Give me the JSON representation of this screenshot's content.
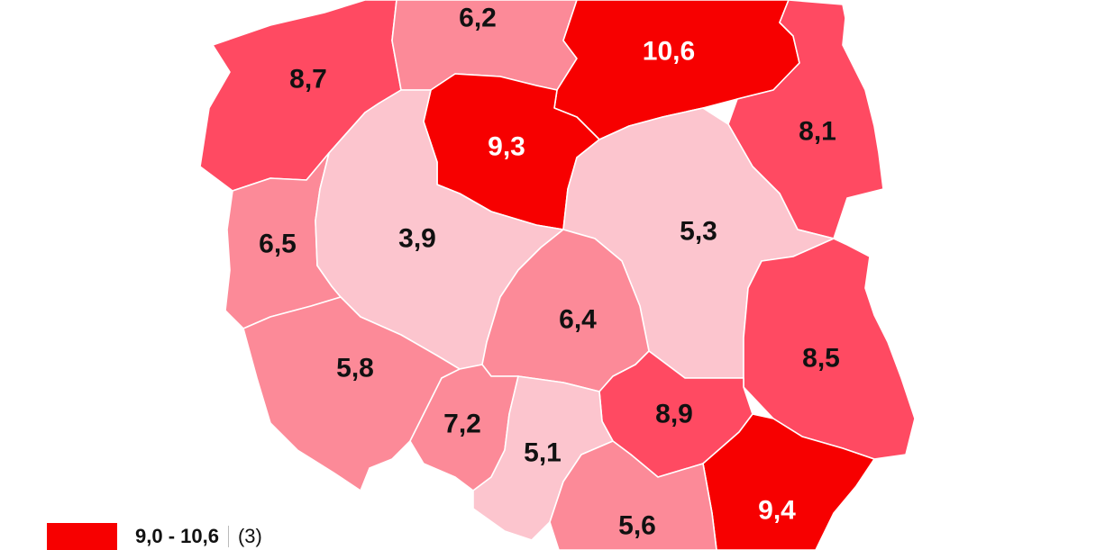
{
  "regions": [
    {
      "id": "pomorskie",
      "value": "6,2",
      "class": 1
    },
    {
      "id": "warminsko-mazurskie",
      "value": "10,6",
      "class": 3
    },
    {
      "id": "zachodniopomorskie",
      "value": "8,7",
      "class": 2
    },
    {
      "id": "podlaskie",
      "value": "8,1",
      "class": 2
    },
    {
      "id": "kujawsko-pomorskie",
      "value": "9,3",
      "class": 3
    },
    {
      "id": "lubuskie",
      "value": "6,5",
      "class": 1
    },
    {
      "id": "wielkopolskie",
      "value": "3,9",
      "class": 0
    },
    {
      "id": "mazowieckie",
      "value": "5,3",
      "class": 0
    },
    {
      "id": "lodzkie",
      "value": "6,4",
      "class": 1
    },
    {
      "id": "lubelskie",
      "value": "8,5",
      "class": 2
    },
    {
      "id": "dolnoslaskie",
      "value": "5,8",
      "class": 1
    },
    {
      "id": "opolskie",
      "value": "7,2",
      "class": 1
    },
    {
      "id": "swietokrzyskie",
      "value": "8,9",
      "class": 2
    },
    {
      "id": "slaskie",
      "value": "5,1",
      "class": 0
    },
    {
      "id": "podkarpackie",
      "value": "9,4",
      "class": 3
    },
    {
      "id": "malopolskie",
      "value": "5,6",
      "class": 1
    }
  ],
  "class_colors": [
    "#fcc5ce",
    "#fc8a98",
    "#ff4a62",
    "#f70000"
  ],
  "class_label_colors": [
    "#111111",
    "#111111",
    "#111111",
    "#ffffff"
  ],
  "legend": [
    {
      "range": "9,0 - 10,6",
      "count": "(3)",
      "color": "#f70000"
    }
  ]
}
